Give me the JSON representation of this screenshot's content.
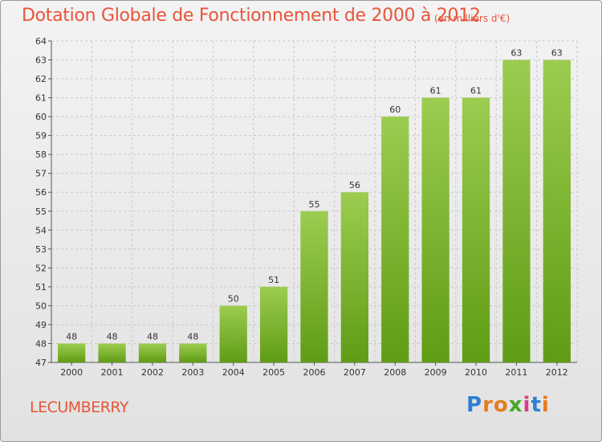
{
  "header": {
    "title": "Dotation Globale de Fonctionnement de 2000 à 2012",
    "unit": "(en milliers d'€)"
  },
  "footer": {
    "commune": "LECUMBERRY",
    "logo_letters": [
      "P",
      "r",
      "o",
      "x",
      "i",
      "t",
      "i"
    ]
  },
  "colors": {
    "title": "#e7553a",
    "bar_top": "#9ccc50",
    "bar_bottom": "#5f9c14",
    "logo": [
      "#2f7fd1",
      "#e47c1e",
      "#e47c1e",
      "#4aa527",
      "#d93c8c",
      "#2f7fd1",
      "#e47c1e"
    ]
  },
  "chart_data": {
    "type": "bar",
    "title": "Dotation Globale de Fonctionnement de 2000 à 2012",
    "subtitle": "(en milliers d'€)",
    "categories": [
      "2000",
      "2001",
      "2002",
      "2003",
      "2004",
      "2005",
      "2006",
      "2007",
      "2008",
      "2009",
      "2010",
      "2011",
      "2012"
    ],
    "values": [
      48,
      48,
      48,
      48,
      50,
      51,
      55,
      56,
      60,
      61,
      61,
      63,
      63
    ],
    "ylim": [
      47,
      64
    ],
    "yticks": [
      47,
      48,
      49,
      50,
      51,
      52,
      53,
      54,
      55,
      56,
      57,
      58,
      59,
      60,
      61,
      62,
      63,
      64
    ],
    "grid": true,
    "legend": "none"
  }
}
